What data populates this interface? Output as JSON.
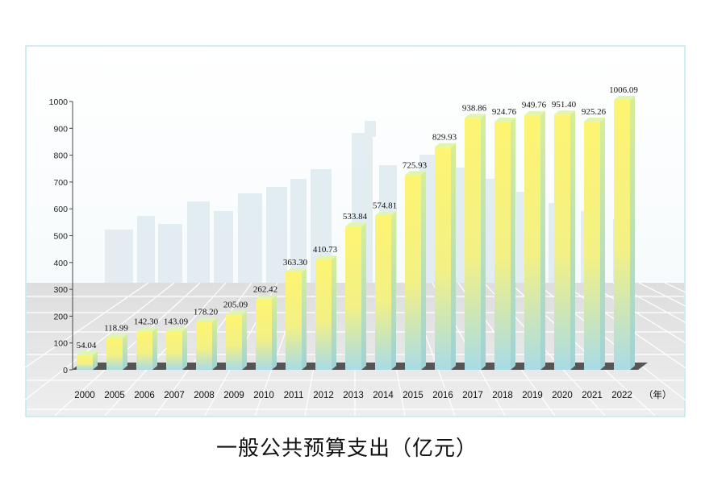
{
  "colors": {
    "bar_top": "#fdf471",
    "bar_bottom": "#a9dbe6",
    "bar_side": "#c9ec9a",
    "bar_cap": "#e0f6b0",
    "floor_dark": "#555555",
    "frame": "#a6dbe6"
  },
  "chart_data": {
    "type": "bar",
    "title": "一般公共预算支出（亿元）",
    "xlabel": "（年）",
    "ylabel": "",
    "ylim": [
      0,
      1000
    ],
    "yticks": [
      0,
      100,
      200,
      300,
      400,
      500,
      600,
      700,
      800,
      900,
      1000
    ],
    "categories": [
      "2000",
      "2005",
      "2006",
      "2007",
      "2008",
      "2009",
      "2010",
      "2011",
      "2012",
      "2013",
      "2014",
      "2015",
      "2016",
      "2017",
      "2018",
      "2019",
      "2020",
      "2021",
      "2022"
    ],
    "values": [
      54.04,
      118.99,
      142.3,
      143.09,
      178.2,
      205.09,
      262.42,
      363.3,
      410.73,
      533.84,
      574.81,
      725.93,
      829.93,
      938.86,
      924.76,
      949.76,
      951.4,
      925.26,
      1006.09
    ],
    "value_labels": [
      "54.04",
      "118.99",
      "142.30",
      "143.09",
      "178.20",
      "205.09",
      "262.42",
      "363.30",
      "410.73",
      "533.84",
      "574.81",
      "725.93",
      "829.93",
      "938.86",
      "924.76",
      "949.76",
      "951.40",
      "925.26",
      "1006.09"
    ]
  }
}
